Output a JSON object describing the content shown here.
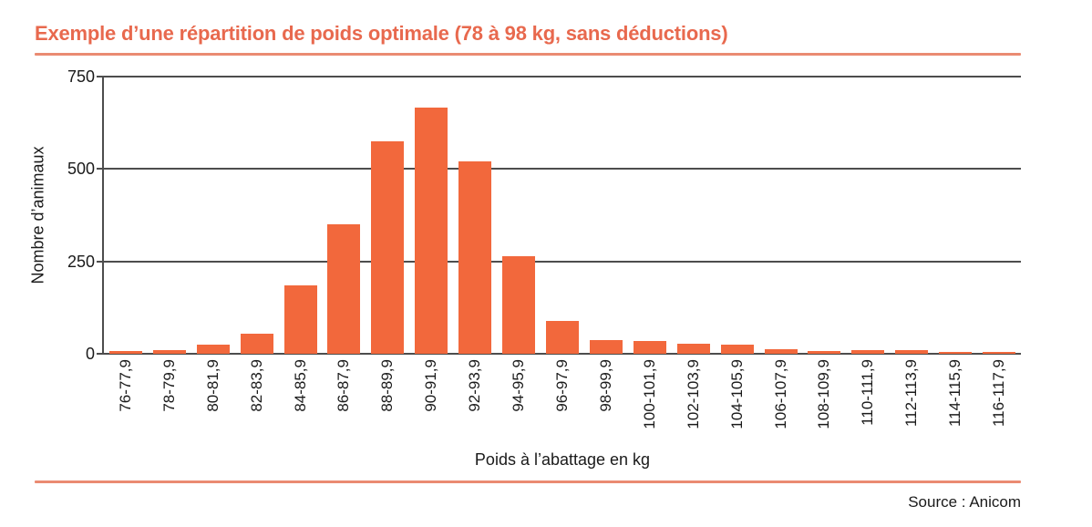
{
  "title": "Exemple d’une répartition de poids optimale (78 à 98 kg, sans déductions)",
  "source": "Source : Anicom",
  "colors": {
    "title": "#e8694e",
    "rule": "#ea8b72",
    "bar": "#f2683c",
    "gridline": "#4d4d4d",
    "text": "#1a1a1a"
  },
  "chart_data": {
    "type": "bar",
    "title": "Exemple d’une répartition de poids optimale (78 à 98 kg, sans déductions)",
    "categories": [
      "76-77,9",
      "78-79,9",
      "80-81,9",
      "82-83,9",
      "84-85,9",
      "86-87,9",
      "88-89,9",
      "90-91,9",
      "92-93,9",
      "94-95,9",
      "96-97,9",
      "98-99,9",
      "100-101,9",
      "102-103,9",
      "104-105,9",
      "106-107,9",
      "108-109,9",
      "110-111,9",
      "112-113,9",
      "114-115,9",
      "116-117,9"
    ],
    "values": [
      8,
      10,
      25,
      55,
      185,
      350,
      575,
      665,
      520,
      265,
      90,
      38,
      35,
      28,
      25,
      12,
      8,
      10,
      10,
      6,
      6
    ],
    "xlabel": "Poids à l’abattage en kg",
    "ylabel": "Nombre d’animaux",
    "ylim": [
      0,
      750
    ],
    "yticks": [
      0,
      250,
      500,
      750
    ],
    "grid": true,
    "legend": "none"
  }
}
